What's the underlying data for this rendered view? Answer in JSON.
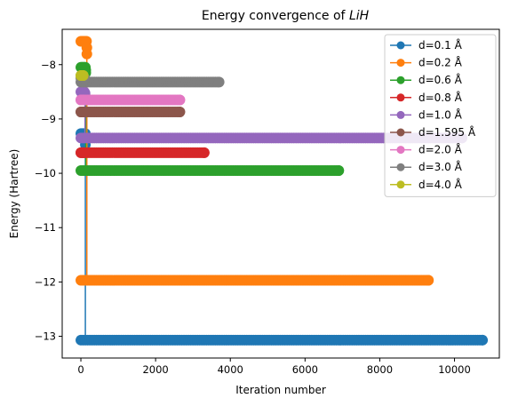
{
  "chart_data": {
    "type": "line",
    "title_prefix": "Energy convergence of ",
    "title_formula": "LiH",
    "xlabel": "Iteration number",
    "ylabel": "Energy (Hartree)",
    "xlim": [
      -500,
      11200
    ],
    "ylim": [
      -13.4,
      -7.35
    ],
    "xticks": [
      0,
      2000,
      4000,
      6000,
      8000,
      10000
    ],
    "xtick_labels": [
      "0",
      "2000",
      "4000",
      "6000",
      "8000",
      "10000"
    ],
    "yticks": [
      -13,
      -12,
      -11,
      -10,
      -9,
      -8
    ],
    "ytick_labels": [
      "−13",
      "−12",
      "−11",
      "−10",
      "−9",
      "−8"
    ],
    "grid": false,
    "legend_position": "top-right",
    "series": [
      {
        "name": "d=0.1 Å",
        "color": "#1f77b4",
        "start_energy": -9.27,
        "converged_energy": -13.07,
        "jump_iteration": 120,
        "final_iteration": 10750
      },
      {
        "name": "d=0.2 Å",
        "color": "#ff7f0e",
        "start_energy": -7.57,
        "converged_energy": -11.97,
        "jump_iteration": 160,
        "final_iteration": 9300
      },
      {
        "name": "d=0.6 Å",
        "color": "#2ca02c",
        "start_energy": -8.05,
        "converged_energy": -9.95,
        "jump_iteration": 130,
        "final_iteration": 6900
      },
      {
        "name": "d=0.8 Å",
        "color": "#d62728",
        "start_energy": -9.62,
        "converged_energy": -9.62,
        "jump_iteration": 90,
        "final_iteration": 3300
      },
      {
        "name": "d=1.0 Å",
        "color": "#9467bd",
        "start_energy": -8.5,
        "converged_energy": -9.35,
        "jump_iteration": 110,
        "final_iteration": 10200
      },
      {
        "name": "d=1.595 Å",
        "color": "#8c564b",
        "start_energy": -8.87,
        "converged_energy": -8.87,
        "jump_iteration": 80,
        "final_iteration": 2650
      },
      {
        "name": "d=2.0 Å",
        "color": "#e377c2",
        "start_energy": -8.65,
        "converged_energy": -8.65,
        "jump_iteration": 80,
        "final_iteration": 2650
      },
      {
        "name": "d=3.0 Å",
        "color": "#7f7f7f",
        "start_energy": -8.25,
        "converged_energy": -8.32,
        "jump_iteration": 100,
        "final_iteration": 3700
      },
      {
        "name": "d=4.0 Å",
        "color": "#bcbd22",
        "start_energy": -8.2,
        "converged_energy": -8.2,
        "jump_iteration": 60,
        "final_iteration": 60
      }
    ]
  }
}
